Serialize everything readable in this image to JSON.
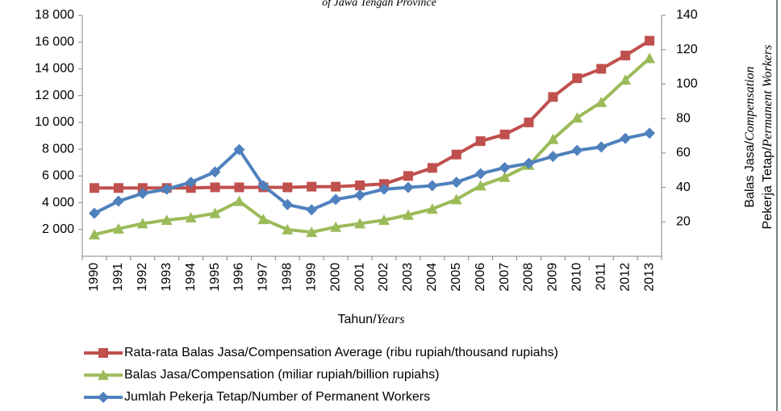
{
  "chart_data": {
    "type": "line",
    "title": "of Jawa Tengah Province",
    "x_label": [
      "Tahun/",
      "Years"
    ],
    "y2_label": [
      [
        "Balas Jasa/",
        "Compensation"
      ],
      [
        "Pekerja Tetap/",
        "Permanent Workers"
      ]
    ],
    "categories": [
      "1990",
      "1991",
      "1992",
      "1993",
      "1994",
      "1995",
      "1996",
      "1997",
      "1998",
      "1999",
      "2000",
      "2001",
      "2002",
      "2003",
      "2004",
      "2005",
      "2006",
      "2007",
      "2008",
      "2009",
      "2010",
      "2011",
      "2012",
      "2013"
    ],
    "ylim": [
      0,
      18000
    ],
    "yticks": [
      {
        "value": 2000,
        "label": "2 000"
      },
      {
        "value": 4000,
        "label": "4 000"
      },
      {
        "value": 6000,
        "label": "6 000"
      },
      {
        "value": 8000,
        "label": "8 000"
      },
      {
        "value": 10000,
        "label": "10 000"
      },
      {
        "value": 12000,
        "label": "12 000"
      },
      {
        "value": 14000,
        "label": "14 000"
      },
      {
        "value": 16000,
        "label": "16 000"
      },
      {
        "value": 18000,
        "label": "18 000"
      }
    ],
    "y2lim": [
      0,
      140
    ],
    "y2ticks": [
      20,
      40,
      60,
      80,
      100,
      120,
      140
    ],
    "series": [
      {
        "name": "Rata-rata Balas Jasa/Compensation Average (ribu rupiah/thousand rupiahs)",
        "color": "#c0504d",
        "marker": "square",
        "values": [
          5100,
          5100,
          5100,
          5100,
          5100,
          5150,
          5150,
          5150,
          5150,
          5200,
          5200,
          5300,
          5400,
          6000,
          6600,
          7600,
          8600,
          9100,
          10000,
          11900,
          13300,
          14000,
          15000,
          16100
        ]
      },
      {
        "name": "Balas Jasa/Compensation (miliar rupiah/billion rupiahs)",
        "color": "#9bbb59",
        "marker": "triangle",
        "axis": "y2",
        "values": [
          12.6,
          16,
          19,
          21,
          22.5,
          25,
          32,
          21.5,
          15.5,
          14,
          17,
          19,
          21,
          24,
          27.5,
          33,
          41,
          46,
          53,
          68,
          80.5,
          89.5,
          102.5,
          115
        ]
      },
      {
        "name": "Jumlah Pekerja Tetap/Number of Permanent Workers",
        "color": "#4f81bd",
        "marker": "diamond",
        "axis": "y2",
        "values": [
          25,
          32,
          36.5,
          39,
          43,
          49,
          62,
          41,
          30,
          27,
          33,
          35.5,
          39,
          40,
          41,
          43,
          48,
          51.5,
          54,
          58,
          61.5,
          63.5,
          68.5,
          71.5
        ]
      }
    ]
  }
}
